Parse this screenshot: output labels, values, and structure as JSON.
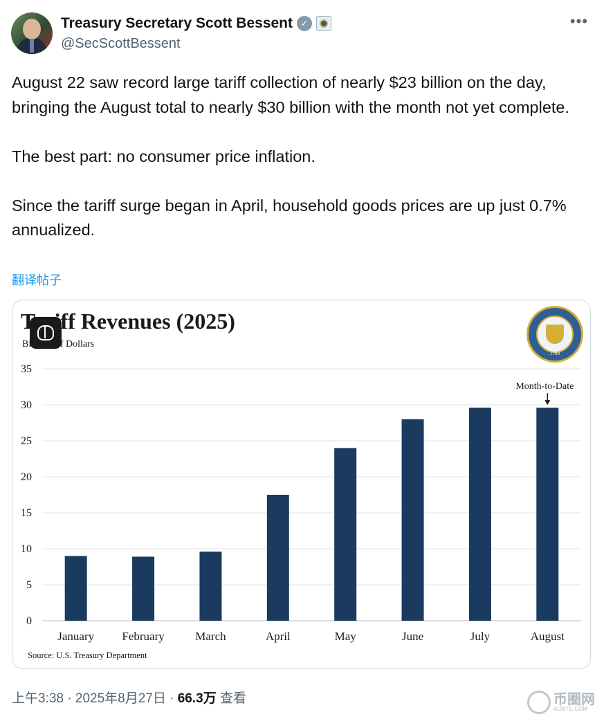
{
  "author": {
    "display_name": "Treasury Secretary Scott Bessent",
    "handle": "@SecScottBessent",
    "verified_icon": "verified-badge-icon",
    "affiliation_icon": "treasury-affiliation-icon"
  },
  "post": {
    "paragraphs": [
      "August 22 saw record large tariff collection of nearly $23 billion on the day, bringing the August total to nearly $30 billion with the month not yet complete.",
      "The best part: no consumer price inflation.",
      "Since the tariff surge began in April, household goods prices are up just 0.7% annualized."
    ],
    "translate_label": "翻译帖子"
  },
  "meta": {
    "time": "上午3:38",
    "separator": "·",
    "date": "2025年8月27日",
    "views_count": "66.3万",
    "views_label": "查看"
  },
  "watermark": {
    "name": "币圈网",
    "domain": "ALIBTC.COM"
  },
  "seal": {
    "year": "1789"
  },
  "colors": {
    "bar": "#1b3a5f",
    "link": "#1d9bf0",
    "secondary_text": "#536471"
  },
  "chart_data": {
    "type": "bar",
    "title": "Tariff Revenues (2025)",
    "subtitle": "Billions of Dollars",
    "source": "Source: U.S. Treasury Department",
    "categories": [
      "January",
      "February",
      "March",
      "April",
      "May",
      "June",
      "July",
      "August"
    ],
    "values": [
      9,
      8.9,
      9.6,
      17.5,
      24,
      28,
      29.6,
      29.6
    ],
    "ylim": [
      0,
      35
    ],
    "yticks": [
      0,
      5,
      10,
      15,
      20,
      25,
      30,
      35
    ],
    "grid": true,
    "annotation": {
      "text": "Month-to-Date",
      "category": "August"
    }
  }
}
